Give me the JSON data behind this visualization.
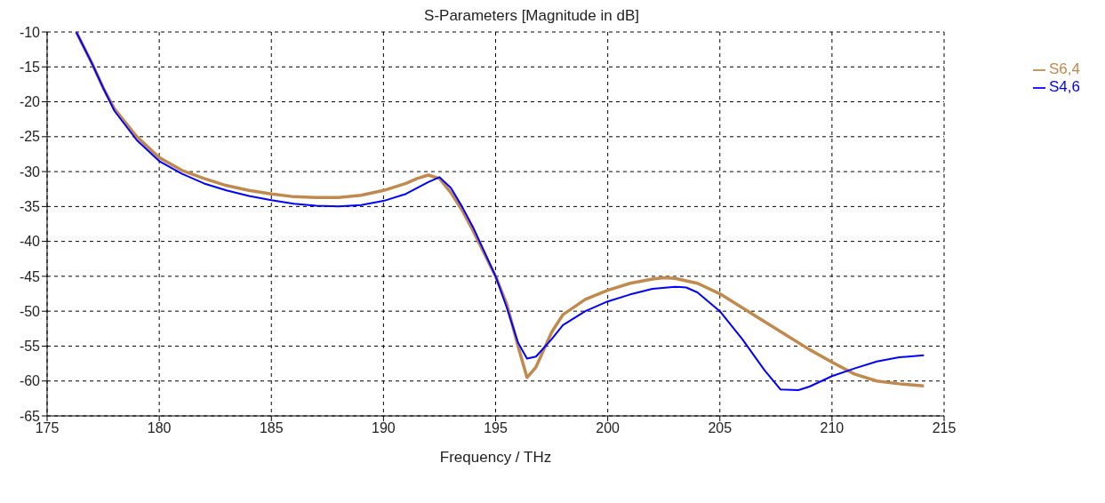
{
  "chart_data": {
    "type": "line",
    "title": "S-Parameters [Magnitude in dB]",
    "xlabel": "Frequency / THz",
    "xlim": [
      175,
      215
    ],
    "xticks": [
      175,
      180,
      185,
      190,
      195,
      200,
      205,
      210,
      215
    ],
    "ylim": [
      -65,
      -10
    ],
    "yticks": [
      -65,
      -60,
      -55,
      -50,
      -45,
      -40,
      -35,
      -30,
      -25,
      -20,
      -15,
      -10
    ],
    "grid": true,
    "legend": "top right",
    "marker": "none",
    "line_style": "solid",
    "series": [
      {
        "name": "S6,4",
        "color": "#c08a4e",
        "x": [
          176.3,
          177,
          177.5,
          178,
          179,
          180,
          181,
          182,
          183,
          184,
          185,
          186,
          187,
          188,
          189,
          190,
          191,
          191.5,
          192,
          192.5,
          193,
          193.5,
          194,
          195,
          195.5,
          196,
          196.4,
          196.8,
          197.5,
          198,
          199,
          200,
          201,
          202,
          202.5,
          203,
          204,
          205,
          206,
          207,
          208,
          209,
          210,
          211,
          212,
          213,
          214.1
        ],
        "values": [
          -10,
          -14.5,
          -18,
          -21,
          -25,
          -28,
          -29.8,
          -31,
          -32,
          -32.7,
          -33.2,
          -33.6,
          -33.7,
          -33.7,
          -33.4,
          -32.7,
          -31.7,
          -31,
          -30.5,
          -31,
          -33,
          -35.5,
          -38.5,
          -45,
          -49,
          -55,
          -59.5,
          -58,
          -53,
          -50.5,
          -48.3,
          -47,
          -46,
          -45.4,
          -45.2,
          -45.3,
          -46,
          -47.5,
          -49.5,
          -51.5,
          -53.5,
          -55.5,
          -57.3,
          -59,
          -60,
          -60.4,
          -60.7
        ]
      },
      {
        "name": "S4,6",
        "color": "#0000ff",
        "x": [
          176.3,
          177,
          177.5,
          178,
          179,
          180,
          181,
          182,
          183,
          184,
          185,
          186,
          187,
          188,
          189,
          190,
          191,
          192,
          192.5,
          193,
          193.5,
          194,
          195,
          195.5,
          196,
          196.4,
          196.8,
          197.5,
          198,
          199,
          200,
          201,
          202,
          203,
          203.5,
          204,
          205,
          206,
          207,
          207.7,
          208.5,
          209,
          210,
          211,
          212,
          213,
          214.1
        ],
        "values": [
          -10,
          -14.5,
          -18,
          -21.3,
          -25.5,
          -28.5,
          -30.3,
          -31.7,
          -32.7,
          -33.5,
          -34.1,
          -34.6,
          -34.9,
          -35,
          -34.8,
          -34.2,
          -33.2,
          -31.5,
          -30.8,
          -32.3,
          -35,
          -38,
          -45,
          -49.5,
          -54.5,
          -56.8,
          -56.5,
          -54,
          -52,
          -50,
          -48.6,
          -47.6,
          -46.8,
          -46.5,
          -46.6,
          -47.3,
          -50,
          -54,
          -58.5,
          -61.2,
          -61.3,
          -60.8,
          -59.3,
          -58.2,
          -57.2,
          -56.6,
          -56.3
        ]
      }
    ]
  }
}
